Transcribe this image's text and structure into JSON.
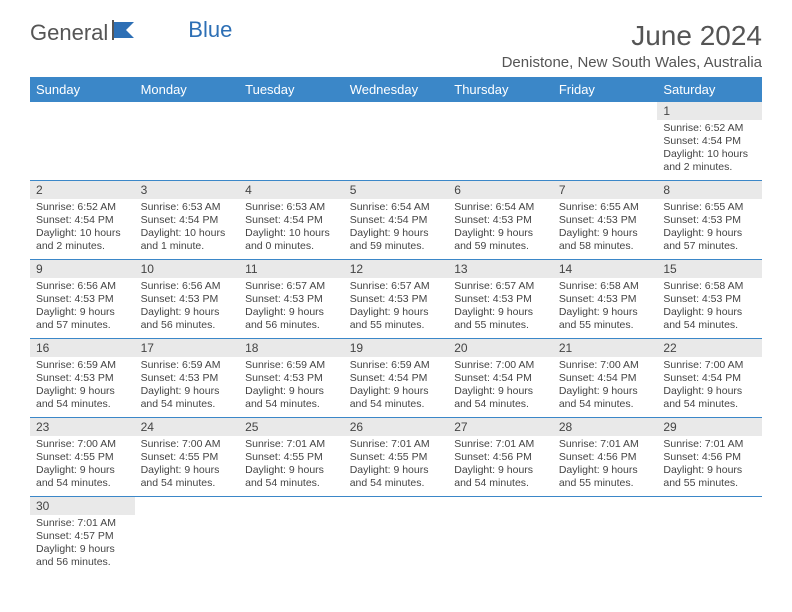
{
  "logo": {
    "text1": "General",
    "text2": "Blue"
  },
  "title": "June 2024",
  "location": "Denistone, New South Wales, Australia",
  "colors": {
    "header_bg": "#3b87c8",
    "header_text": "#ffffff",
    "daynum_bg": "#e9e9e9",
    "row_border": "#3b87c8",
    "text": "#444444"
  },
  "weekdays": [
    "Sunday",
    "Monday",
    "Tuesday",
    "Wednesday",
    "Thursday",
    "Friday",
    "Saturday"
  ],
  "weeks": [
    [
      null,
      null,
      null,
      null,
      null,
      null,
      {
        "n": "1",
        "sr": "Sunrise: 6:52 AM",
        "ss": "Sunset: 4:54 PM",
        "dl1": "Daylight: 10 hours",
        "dl2": "and 2 minutes."
      }
    ],
    [
      {
        "n": "2",
        "sr": "Sunrise: 6:52 AM",
        "ss": "Sunset: 4:54 PM",
        "dl1": "Daylight: 10 hours",
        "dl2": "and 2 minutes."
      },
      {
        "n": "3",
        "sr": "Sunrise: 6:53 AM",
        "ss": "Sunset: 4:54 PM",
        "dl1": "Daylight: 10 hours",
        "dl2": "and 1 minute."
      },
      {
        "n": "4",
        "sr": "Sunrise: 6:53 AM",
        "ss": "Sunset: 4:54 PM",
        "dl1": "Daylight: 10 hours",
        "dl2": "and 0 minutes."
      },
      {
        "n": "5",
        "sr": "Sunrise: 6:54 AM",
        "ss": "Sunset: 4:54 PM",
        "dl1": "Daylight: 9 hours",
        "dl2": "and 59 minutes."
      },
      {
        "n": "6",
        "sr": "Sunrise: 6:54 AM",
        "ss": "Sunset: 4:53 PM",
        "dl1": "Daylight: 9 hours",
        "dl2": "and 59 minutes."
      },
      {
        "n": "7",
        "sr": "Sunrise: 6:55 AM",
        "ss": "Sunset: 4:53 PM",
        "dl1": "Daylight: 9 hours",
        "dl2": "and 58 minutes."
      },
      {
        "n": "8",
        "sr": "Sunrise: 6:55 AM",
        "ss": "Sunset: 4:53 PM",
        "dl1": "Daylight: 9 hours",
        "dl2": "and 57 minutes."
      }
    ],
    [
      {
        "n": "9",
        "sr": "Sunrise: 6:56 AM",
        "ss": "Sunset: 4:53 PM",
        "dl1": "Daylight: 9 hours",
        "dl2": "and 57 minutes."
      },
      {
        "n": "10",
        "sr": "Sunrise: 6:56 AM",
        "ss": "Sunset: 4:53 PM",
        "dl1": "Daylight: 9 hours",
        "dl2": "and 56 minutes."
      },
      {
        "n": "11",
        "sr": "Sunrise: 6:57 AM",
        "ss": "Sunset: 4:53 PM",
        "dl1": "Daylight: 9 hours",
        "dl2": "and 56 minutes."
      },
      {
        "n": "12",
        "sr": "Sunrise: 6:57 AM",
        "ss": "Sunset: 4:53 PM",
        "dl1": "Daylight: 9 hours",
        "dl2": "and 55 minutes."
      },
      {
        "n": "13",
        "sr": "Sunrise: 6:57 AM",
        "ss": "Sunset: 4:53 PM",
        "dl1": "Daylight: 9 hours",
        "dl2": "and 55 minutes."
      },
      {
        "n": "14",
        "sr": "Sunrise: 6:58 AM",
        "ss": "Sunset: 4:53 PM",
        "dl1": "Daylight: 9 hours",
        "dl2": "and 55 minutes."
      },
      {
        "n": "15",
        "sr": "Sunrise: 6:58 AM",
        "ss": "Sunset: 4:53 PM",
        "dl1": "Daylight: 9 hours",
        "dl2": "and 54 minutes."
      }
    ],
    [
      {
        "n": "16",
        "sr": "Sunrise: 6:59 AM",
        "ss": "Sunset: 4:53 PM",
        "dl1": "Daylight: 9 hours",
        "dl2": "and 54 minutes."
      },
      {
        "n": "17",
        "sr": "Sunrise: 6:59 AM",
        "ss": "Sunset: 4:53 PM",
        "dl1": "Daylight: 9 hours",
        "dl2": "and 54 minutes."
      },
      {
        "n": "18",
        "sr": "Sunrise: 6:59 AM",
        "ss": "Sunset: 4:53 PM",
        "dl1": "Daylight: 9 hours",
        "dl2": "and 54 minutes."
      },
      {
        "n": "19",
        "sr": "Sunrise: 6:59 AM",
        "ss": "Sunset: 4:54 PM",
        "dl1": "Daylight: 9 hours",
        "dl2": "and 54 minutes."
      },
      {
        "n": "20",
        "sr": "Sunrise: 7:00 AM",
        "ss": "Sunset: 4:54 PM",
        "dl1": "Daylight: 9 hours",
        "dl2": "and 54 minutes."
      },
      {
        "n": "21",
        "sr": "Sunrise: 7:00 AM",
        "ss": "Sunset: 4:54 PM",
        "dl1": "Daylight: 9 hours",
        "dl2": "and 54 minutes."
      },
      {
        "n": "22",
        "sr": "Sunrise: 7:00 AM",
        "ss": "Sunset: 4:54 PM",
        "dl1": "Daylight: 9 hours",
        "dl2": "and 54 minutes."
      }
    ],
    [
      {
        "n": "23",
        "sr": "Sunrise: 7:00 AM",
        "ss": "Sunset: 4:55 PM",
        "dl1": "Daylight: 9 hours",
        "dl2": "and 54 minutes."
      },
      {
        "n": "24",
        "sr": "Sunrise: 7:00 AM",
        "ss": "Sunset: 4:55 PM",
        "dl1": "Daylight: 9 hours",
        "dl2": "and 54 minutes."
      },
      {
        "n": "25",
        "sr": "Sunrise: 7:01 AM",
        "ss": "Sunset: 4:55 PM",
        "dl1": "Daylight: 9 hours",
        "dl2": "and 54 minutes."
      },
      {
        "n": "26",
        "sr": "Sunrise: 7:01 AM",
        "ss": "Sunset: 4:55 PM",
        "dl1": "Daylight: 9 hours",
        "dl2": "and 54 minutes."
      },
      {
        "n": "27",
        "sr": "Sunrise: 7:01 AM",
        "ss": "Sunset: 4:56 PM",
        "dl1": "Daylight: 9 hours",
        "dl2": "and 54 minutes."
      },
      {
        "n": "28",
        "sr": "Sunrise: 7:01 AM",
        "ss": "Sunset: 4:56 PM",
        "dl1": "Daylight: 9 hours",
        "dl2": "and 55 minutes."
      },
      {
        "n": "29",
        "sr": "Sunrise: 7:01 AM",
        "ss": "Sunset: 4:56 PM",
        "dl1": "Daylight: 9 hours",
        "dl2": "and 55 minutes."
      }
    ],
    [
      {
        "n": "30",
        "sr": "Sunrise: 7:01 AM",
        "ss": "Sunset: 4:57 PM",
        "dl1": "Daylight: 9 hours",
        "dl2": "and 56 minutes."
      },
      null,
      null,
      null,
      null,
      null,
      null
    ]
  ]
}
